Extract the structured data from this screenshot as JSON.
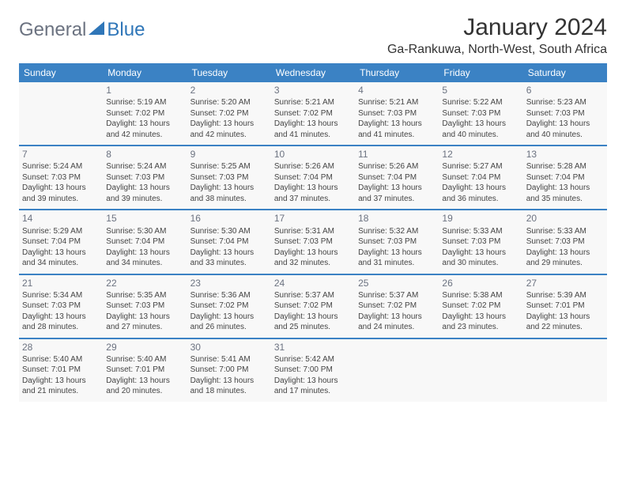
{
  "brand": {
    "general": "General",
    "blue": "Blue"
  },
  "title": "January 2024",
  "location": "Ga-Rankuwa, North-West, South Africa",
  "colors": {
    "header_bg": "#3b82c4",
    "header_text": "#ffffff",
    "cell_bg": "#f8f8f8",
    "divider": "#3b82c4",
    "daynum_color": "#6b7280",
    "body_text": "#444444",
    "logo_gray": "#6b7280",
    "logo_blue": "#2f76b8"
  },
  "weekdays": [
    "Sunday",
    "Monday",
    "Tuesday",
    "Wednesday",
    "Thursday",
    "Friday",
    "Saturday"
  ],
  "weeks": [
    [
      null,
      {
        "n": "1",
        "sr": "Sunrise: 5:19 AM",
        "ss": "Sunset: 7:02 PM",
        "d1": "Daylight: 13 hours",
        "d2": "and 42 minutes."
      },
      {
        "n": "2",
        "sr": "Sunrise: 5:20 AM",
        "ss": "Sunset: 7:02 PM",
        "d1": "Daylight: 13 hours",
        "d2": "and 42 minutes."
      },
      {
        "n": "3",
        "sr": "Sunrise: 5:21 AM",
        "ss": "Sunset: 7:02 PM",
        "d1": "Daylight: 13 hours",
        "d2": "and 41 minutes."
      },
      {
        "n": "4",
        "sr": "Sunrise: 5:21 AM",
        "ss": "Sunset: 7:03 PM",
        "d1": "Daylight: 13 hours",
        "d2": "and 41 minutes."
      },
      {
        "n": "5",
        "sr": "Sunrise: 5:22 AM",
        "ss": "Sunset: 7:03 PM",
        "d1": "Daylight: 13 hours",
        "d2": "and 40 minutes."
      },
      {
        "n": "6",
        "sr": "Sunrise: 5:23 AM",
        "ss": "Sunset: 7:03 PM",
        "d1": "Daylight: 13 hours",
        "d2": "and 40 minutes."
      }
    ],
    [
      {
        "n": "7",
        "sr": "Sunrise: 5:24 AM",
        "ss": "Sunset: 7:03 PM",
        "d1": "Daylight: 13 hours",
        "d2": "and 39 minutes."
      },
      {
        "n": "8",
        "sr": "Sunrise: 5:24 AM",
        "ss": "Sunset: 7:03 PM",
        "d1": "Daylight: 13 hours",
        "d2": "and 39 minutes."
      },
      {
        "n": "9",
        "sr": "Sunrise: 5:25 AM",
        "ss": "Sunset: 7:03 PM",
        "d1": "Daylight: 13 hours",
        "d2": "and 38 minutes."
      },
      {
        "n": "10",
        "sr": "Sunrise: 5:26 AM",
        "ss": "Sunset: 7:04 PM",
        "d1": "Daylight: 13 hours",
        "d2": "and 37 minutes."
      },
      {
        "n": "11",
        "sr": "Sunrise: 5:26 AM",
        "ss": "Sunset: 7:04 PM",
        "d1": "Daylight: 13 hours",
        "d2": "and 37 minutes."
      },
      {
        "n": "12",
        "sr": "Sunrise: 5:27 AM",
        "ss": "Sunset: 7:04 PM",
        "d1": "Daylight: 13 hours",
        "d2": "and 36 minutes."
      },
      {
        "n": "13",
        "sr": "Sunrise: 5:28 AM",
        "ss": "Sunset: 7:04 PM",
        "d1": "Daylight: 13 hours",
        "d2": "and 35 minutes."
      }
    ],
    [
      {
        "n": "14",
        "sr": "Sunrise: 5:29 AM",
        "ss": "Sunset: 7:04 PM",
        "d1": "Daylight: 13 hours",
        "d2": "and 34 minutes."
      },
      {
        "n": "15",
        "sr": "Sunrise: 5:30 AM",
        "ss": "Sunset: 7:04 PM",
        "d1": "Daylight: 13 hours",
        "d2": "and 34 minutes."
      },
      {
        "n": "16",
        "sr": "Sunrise: 5:30 AM",
        "ss": "Sunset: 7:04 PM",
        "d1": "Daylight: 13 hours",
        "d2": "and 33 minutes."
      },
      {
        "n": "17",
        "sr": "Sunrise: 5:31 AM",
        "ss": "Sunset: 7:03 PM",
        "d1": "Daylight: 13 hours",
        "d2": "and 32 minutes."
      },
      {
        "n": "18",
        "sr": "Sunrise: 5:32 AM",
        "ss": "Sunset: 7:03 PM",
        "d1": "Daylight: 13 hours",
        "d2": "and 31 minutes."
      },
      {
        "n": "19",
        "sr": "Sunrise: 5:33 AM",
        "ss": "Sunset: 7:03 PM",
        "d1": "Daylight: 13 hours",
        "d2": "and 30 minutes."
      },
      {
        "n": "20",
        "sr": "Sunrise: 5:33 AM",
        "ss": "Sunset: 7:03 PM",
        "d1": "Daylight: 13 hours",
        "d2": "and 29 minutes."
      }
    ],
    [
      {
        "n": "21",
        "sr": "Sunrise: 5:34 AM",
        "ss": "Sunset: 7:03 PM",
        "d1": "Daylight: 13 hours",
        "d2": "and 28 minutes."
      },
      {
        "n": "22",
        "sr": "Sunrise: 5:35 AM",
        "ss": "Sunset: 7:03 PM",
        "d1": "Daylight: 13 hours",
        "d2": "and 27 minutes."
      },
      {
        "n": "23",
        "sr": "Sunrise: 5:36 AM",
        "ss": "Sunset: 7:02 PM",
        "d1": "Daylight: 13 hours",
        "d2": "and 26 minutes."
      },
      {
        "n": "24",
        "sr": "Sunrise: 5:37 AM",
        "ss": "Sunset: 7:02 PM",
        "d1": "Daylight: 13 hours",
        "d2": "and 25 minutes."
      },
      {
        "n": "25",
        "sr": "Sunrise: 5:37 AM",
        "ss": "Sunset: 7:02 PM",
        "d1": "Daylight: 13 hours",
        "d2": "and 24 minutes."
      },
      {
        "n": "26",
        "sr": "Sunrise: 5:38 AM",
        "ss": "Sunset: 7:02 PM",
        "d1": "Daylight: 13 hours",
        "d2": "and 23 minutes."
      },
      {
        "n": "27",
        "sr": "Sunrise: 5:39 AM",
        "ss": "Sunset: 7:01 PM",
        "d1": "Daylight: 13 hours",
        "d2": "and 22 minutes."
      }
    ],
    [
      {
        "n": "28",
        "sr": "Sunrise: 5:40 AM",
        "ss": "Sunset: 7:01 PM",
        "d1": "Daylight: 13 hours",
        "d2": "and 21 minutes."
      },
      {
        "n": "29",
        "sr": "Sunrise: 5:40 AM",
        "ss": "Sunset: 7:01 PM",
        "d1": "Daylight: 13 hours",
        "d2": "and 20 minutes."
      },
      {
        "n": "30",
        "sr": "Sunrise: 5:41 AM",
        "ss": "Sunset: 7:00 PM",
        "d1": "Daylight: 13 hours",
        "d2": "and 18 minutes."
      },
      {
        "n": "31",
        "sr": "Sunrise: 5:42 AM",
        "ss": "Sunset: 7:00 PM",
        "d1": "Daylight: 13 hours",
        "d2": "and 17 minutes."
      },
      null,
      null,
      null
    ]
  ]
}
